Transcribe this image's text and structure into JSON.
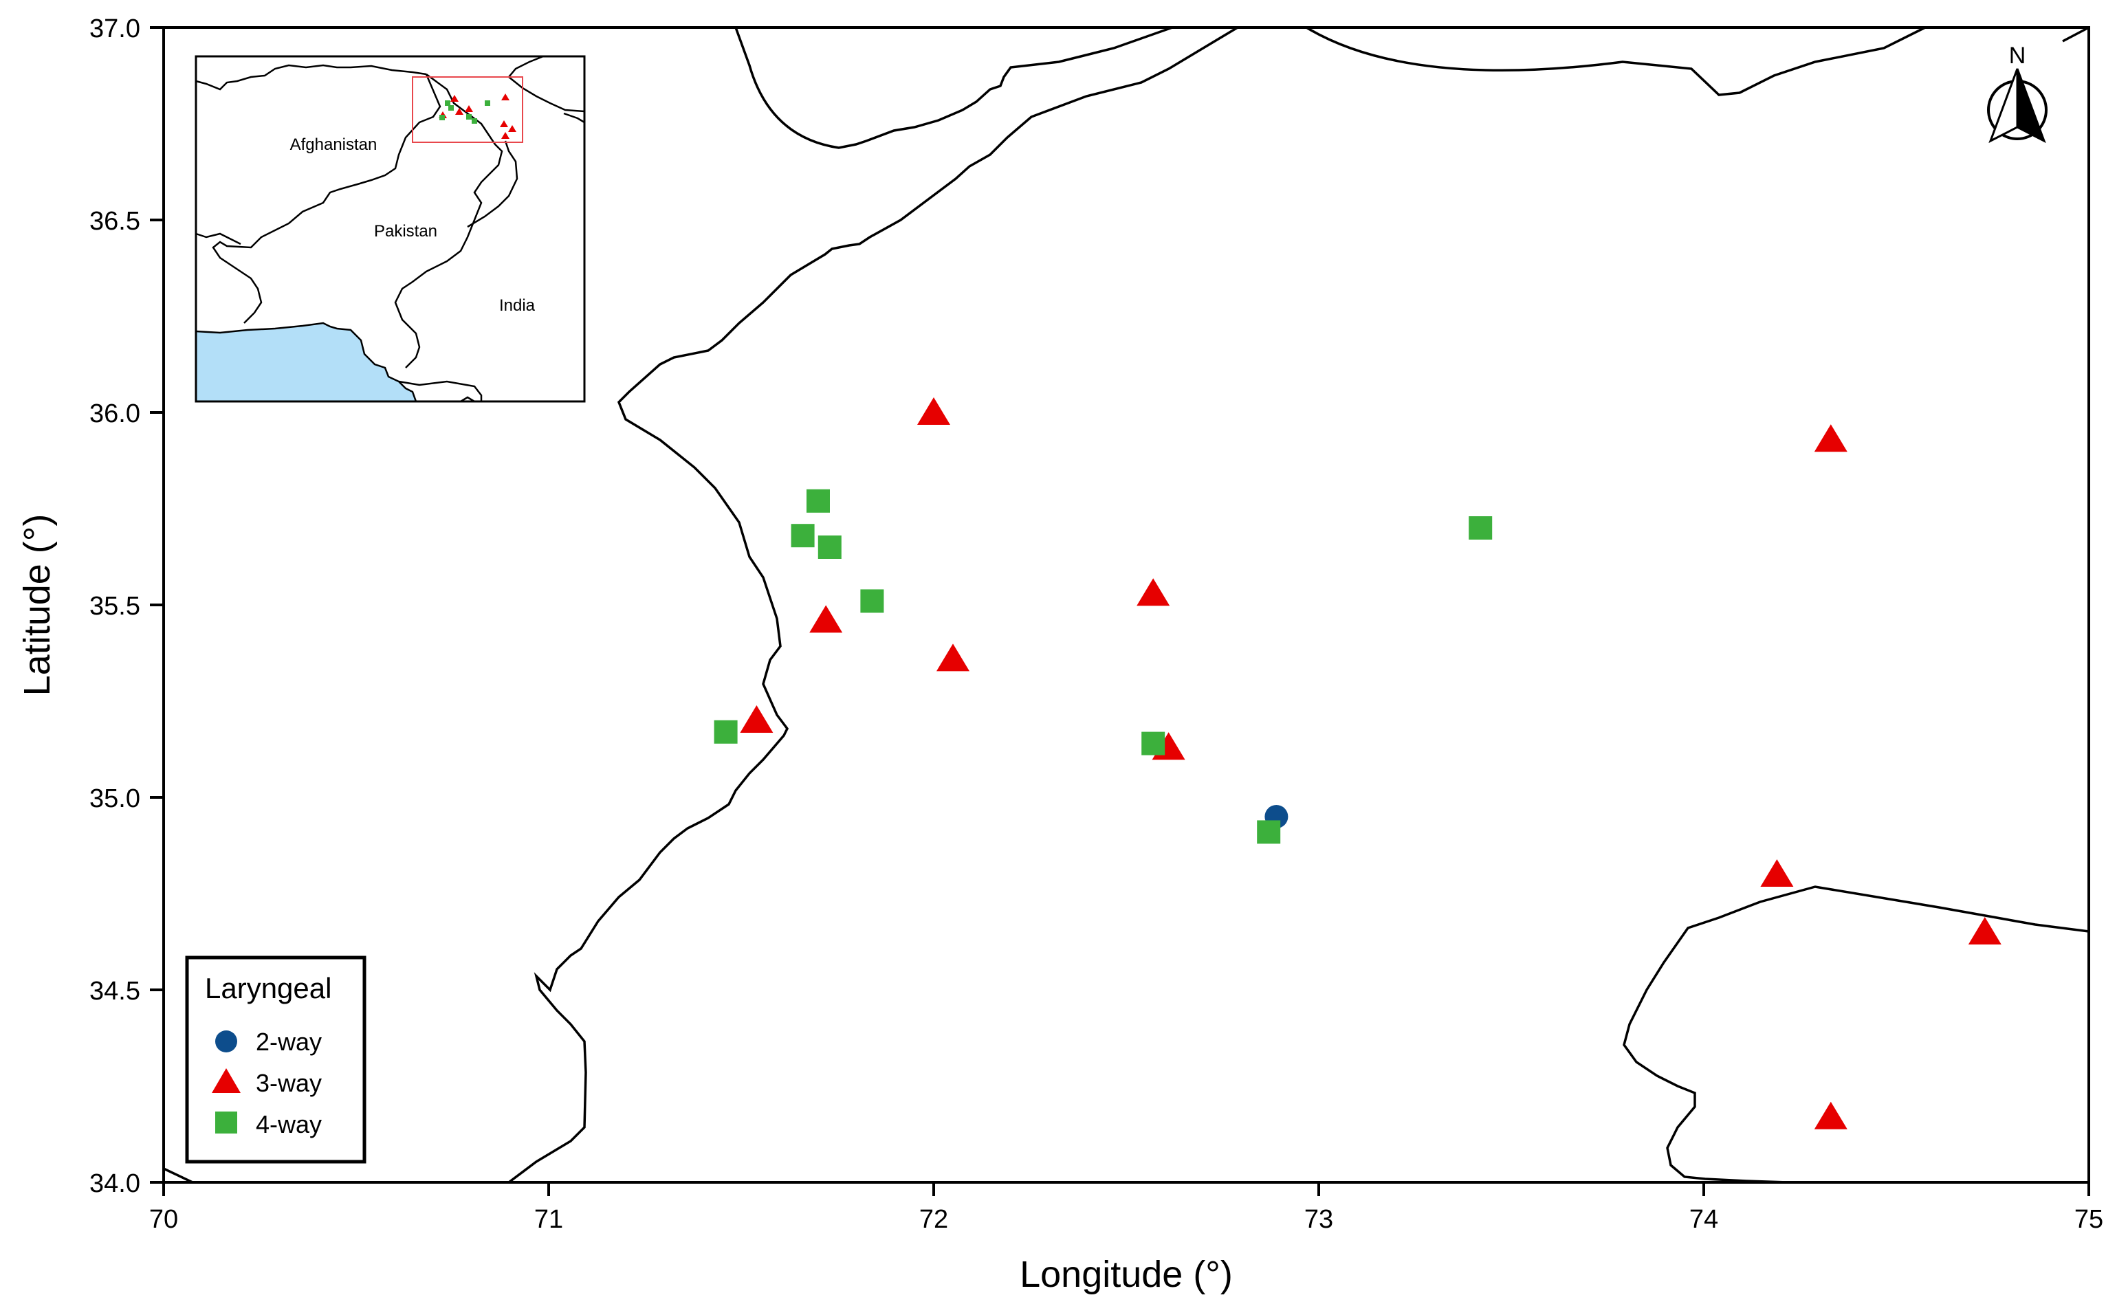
{
  "map": {
    "xlabel": "Longitude (°)",
    "ylabel": "Latitude (°)",
    "x_ticks": [
      "70",
      "71",
      "72",
      "73",
      "74",
      "75"
    ],
    "y_ticks": [
      "34.0",
      "34.5",
      "35.0",
      "35.5",
      "36.0",
      "36.5",
      "37.0"
    ],
    "north_label": "N",
    "inset": {
      "labels": [
        "Afghanistan",
        "Pakistan",
        "India"
      ],
      "water_color": "#b3dff8",
      "frame_color": "#e8474c"
    },
    "legend": {
      "title": "Laryngeal",
      "items": [
        {
          "label": "2-way",
          "symbol": "circle",
          "color": "#0d4d8c"
        },
        {
          "label": "3-way",
          "symbol": "triangle",
          "color": "#e60000"
        },
        {
          "label": "4-way",
          "symbol": "square",
          "color": "#3cb03c"
        }
      ]
    }
  },
  "chart_data": {
    "type": "scatter",
    "xlim": [
      70,
      75
    ],
    "ylim": [
      34.0,
      37.0
    ],
    "series": [
      {
        "name": "2-way",
        "points": [
          [
            72.89,
            34.95
          ]
        ]
      },
      {
        "name": "3-way",
        "points": [
          [
            72.0,
            36.0
          ],
          [
            74.33,
            35.93
          ],
          [
            72.57,
            35.53
          ],
          [
            71.72,
            35.46
          ],
          [
            72.05,
            35.36
          ],
          [
            71.54,
            35.2
          ],
          [
            72.61,
            35.13
          ],
          [
            74.19,
            34.8
          ],
          [
            74.73,
            34.65
          ],
          [
            74.33,
            34.17
          ]
        ]
      },
      {
        "name": "4-way",
        "points": [
          [
            71.7,
            35.77
          ],
          [
            71.66,
            35.68
          ],
          [
            71.73,
            35.65
          ],
          [
            71.84,
            35.51
          ],
          [
            73.42,
            35.7
          ],
          [
            71.46,
            35.17
          ],
          [
            72.57,
            35.14
          ],
          [
            72.87,
            34.91
          ]
        ]
      }
    ]
  }
}
